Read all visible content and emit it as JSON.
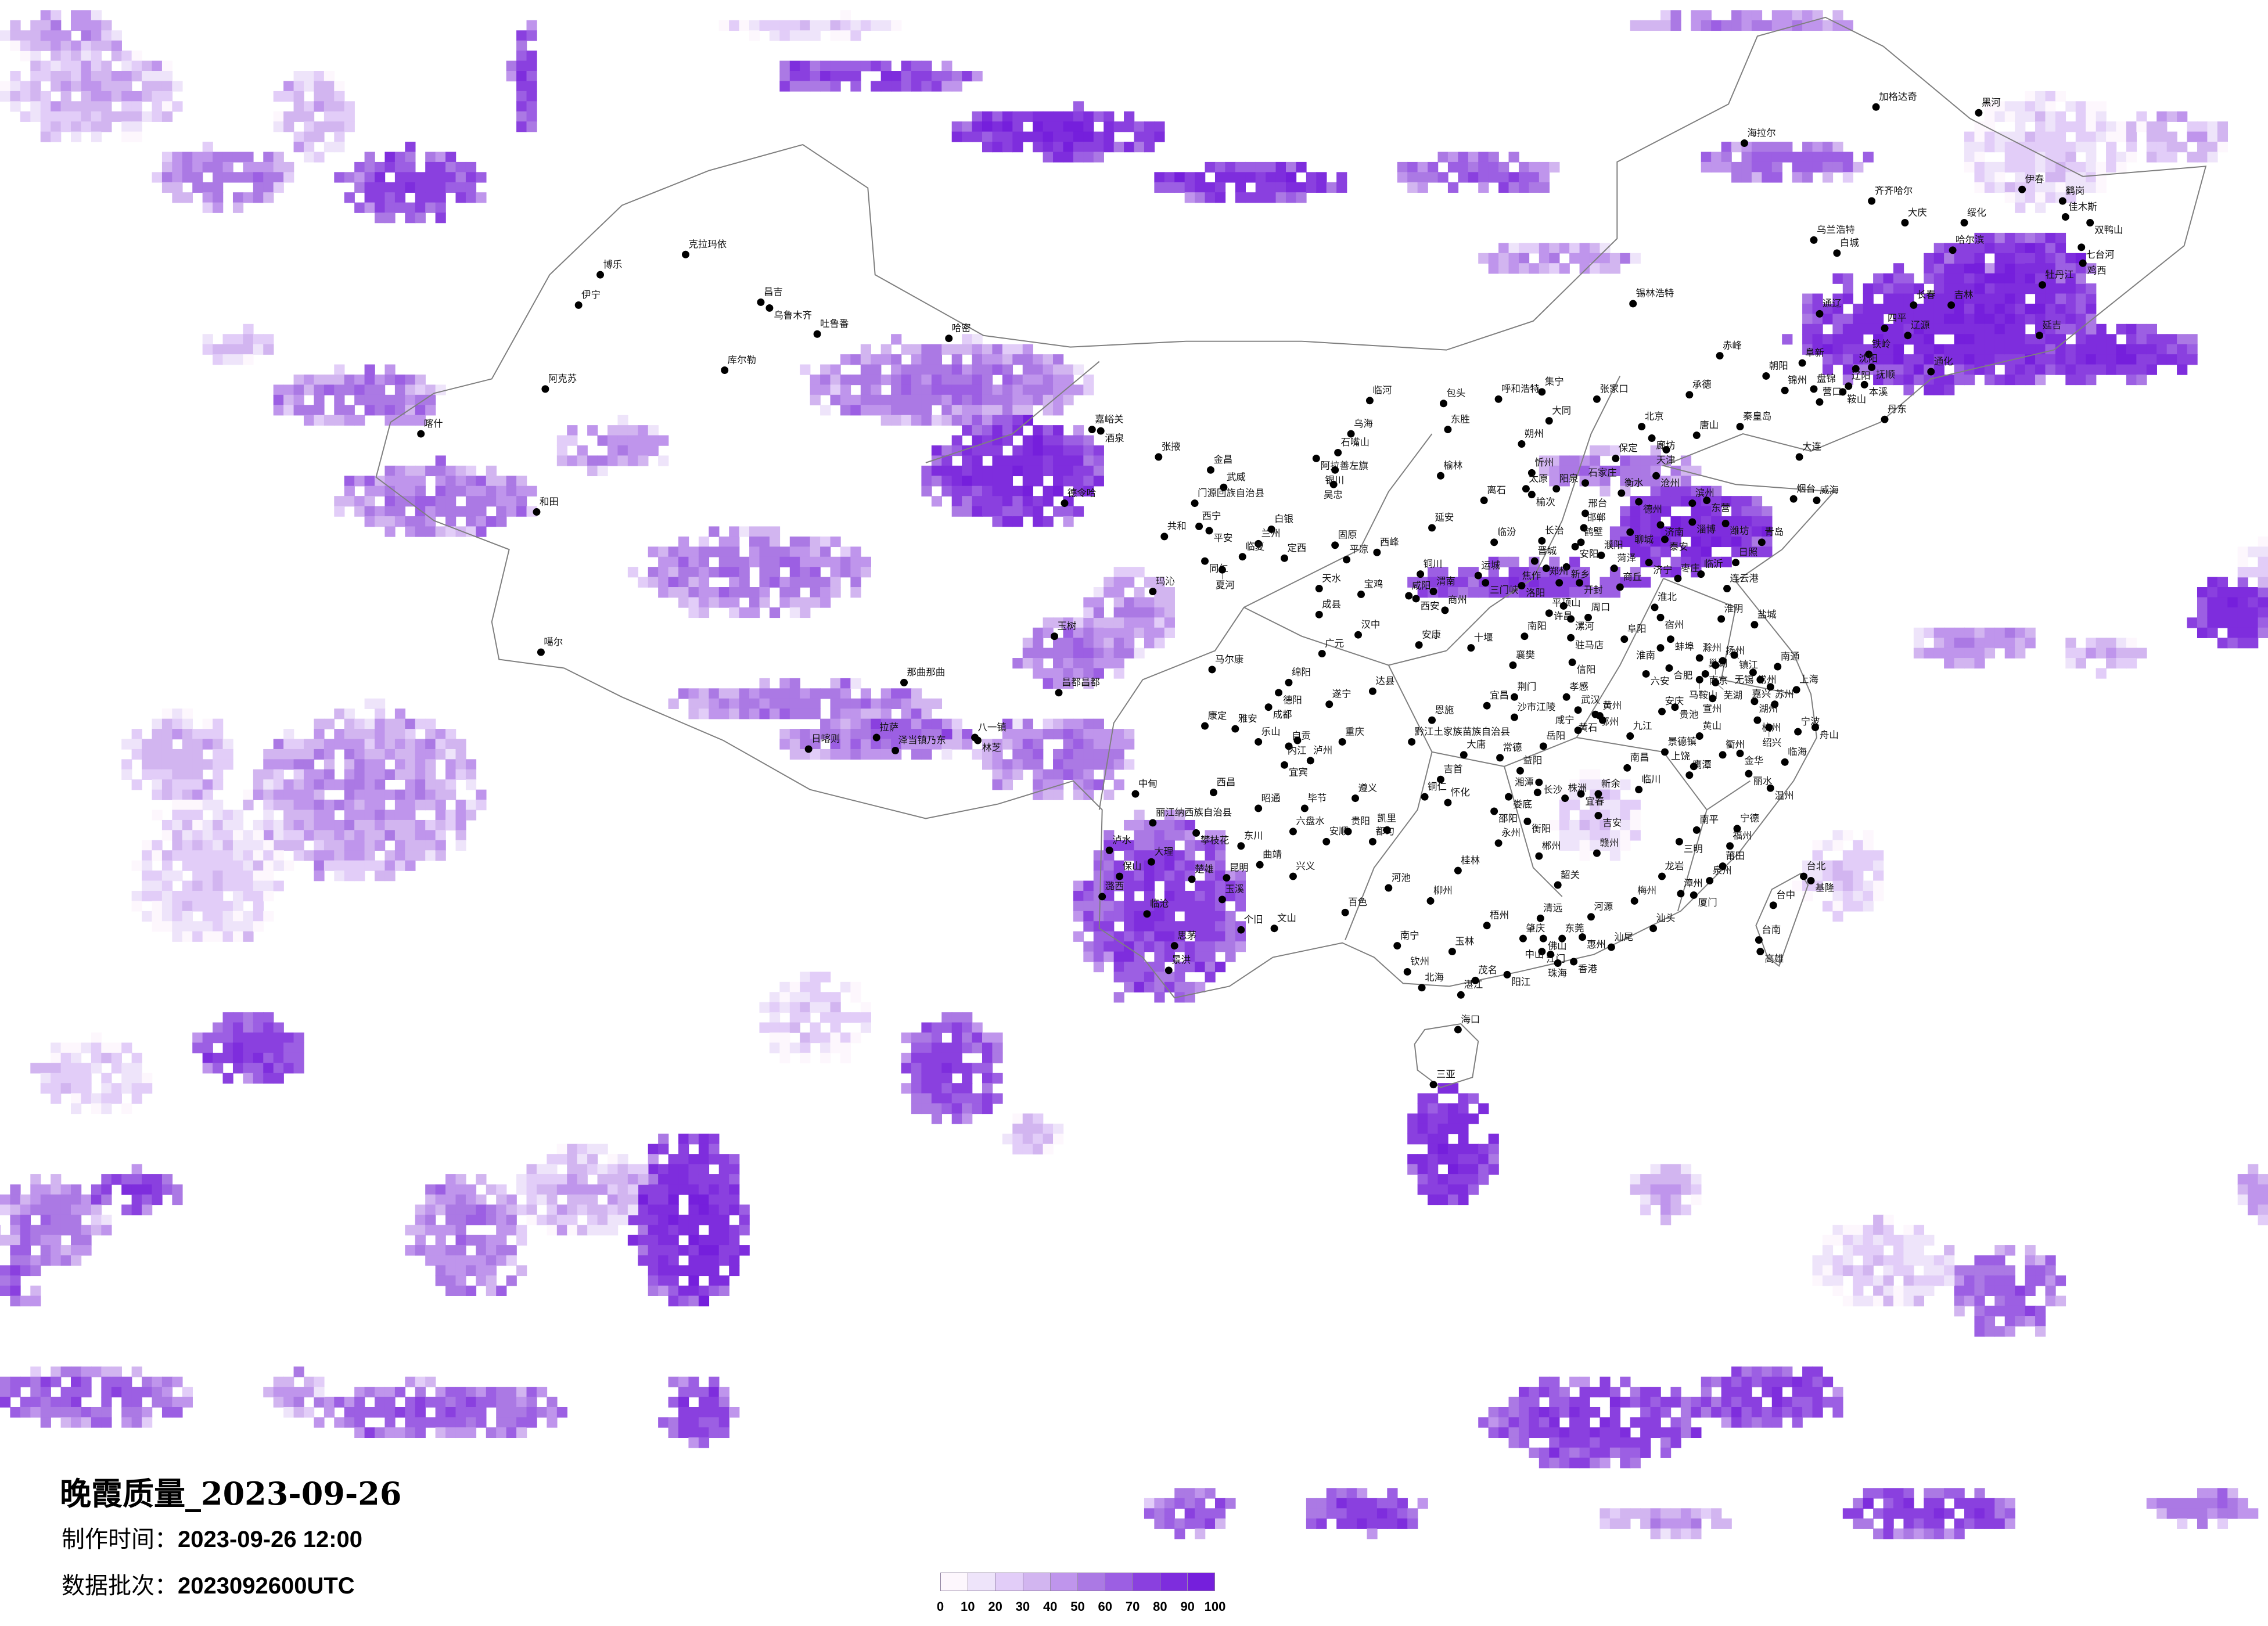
{
  "title": "晚霞质量_2023-09-26",
  "production_time": {
    "label": "制作时间：",
    "value": "2023-09-26 12:00"
  },
  "data_batch": {
    "label": "数据批次：",
    "value": "2023092600UTC"
  },
  "legend": {
    "colors": [
      "#fdf7fd",
      "#eee4fa",
      "#e2cdf8",
      "#d2b5f0",
      "#bf95ec",
      "#ab79e4",
      "#9c5fe3",
      "#8a40df",
      "#7e2ddd",
      "#751fdc"
    ],
    "ticks": [
      "0",
      "10",
      "20",
      "30",
      "40",
      "50",
      "60",
      "70",
      "80",
      "90",
      "100"
    ]
  },
  "boundary_color": "#7f7f7f",
  "cities": [
    "克拉玛依",
    "博乐",
    "伊宁",
    "昌吉",
    "乌鲁木齐",
    "吐鲁番",
    "哈密",
    "库尔勒",
    "阿克苏",
    "喀什",
    "和田",
    "噶尔",
    "嘉峪关",
    "酒泉",
    "德令哈",
    "玉树",
    "那曲那曲",
    "昌都昌都",
    "拉萨",
    "泽当镇乃东",
    "日喀则",
    "八一镇",
    "林芝",
    "加格达奇",
    "黑河",
    "海拉尔",
    "齐齐哈尔",
    "大庆",
    "绥化",
    "伊春",
    "鹤岗",
    "佳木斯",
    "双鸭山",
    "七台河",
    "鸡西",
    "乌兰浩特",
    "白城",
    "哈尔滨",
    "牡丹江",
    "长春",
    "吉林",
    "锡林浩特",
    "通辽",
    "四平",
    "辽源",
    "延吉",
    "铁岭",
    "赤峰",
    "阜新",
    "沈阳",
    "抚顺",
    "通化",
    "朝阳",
    "锦州",
    "盘锦",
    "辽阳",
    "鞍山",
    "本溪",
    "营口",
    "临河",
    "包头",
    "呼和浩特",
    "集宁",
    "张家口",
    "承德",
    "丹东",
    "大同",
    "北京",
    "秦皇岛",
    "乌海",
    "东胜",
    "唐山",
    "廊坊",
    "朔州",
    "天津",
    "石嘴山",
    "阿拉善左旗",
    "大连",
    "保定",
    "银川",
    "榆林",
    "忻州",
    "沧州",
    "吴忠",
    "石家庄",
    "太原",
    "榆次",
    "阳泉",
    "衡水",
    "烟台",
    "威海",
    "离石",
    "德州",
    "滨州",
    "东营",
    "邢台",
    "淄博",
    "潍坊",
    "济南",
    "邯郸",
    "延安",
    "聊城",
    "青岛",
    "泰安",
    "临汾",
    "长治",
    "鹤壁",
    "固原",
    "西峰",
    "平凉",
    "安阳",
    "濮阳",
    "晋城",
    "济宁",
    "日照",
    "新乡",
    "焦作",
    "菏泽",
    "铜川",
    "运城",
    "临沂",
    "枣庄",
    "张掖",
    "金昌",
    "武威",
    "门源回族自治县",
    "西宁",
    "平安",
    "共和",
    "白银",
    "兰州",
    "同仁",
    "临夏",
    "夏河",
    "定西",
    "玛沁",
    "天水",
    "宝鸡",
    "咸阳",
    "西安",
    "渭南",
    "成县",
    "商州",
    "汉中",
    "安康",
    "十堰",
    "广元",
    "马尔康",
    "绵阳",
    "德阳",
    "达县",
    "成都",
    "遂宁",
    "康定",
    "雅安",
    "乐山",
    "自贡",
    "内江",
    "重庆",
    "宜宾",
    "泸州",
    "黔江土家族苗族自治县",
    "恩施",
    "吉首",
    "铜仁",
    "怀化",
    "大庸",
    "常德",
    "益阳",
    "长沙",
    "湘潭",
    "株洲",
    "娄底",
    "邵阳",
    "衡阳",
    "岳阳",
    "荆门",
    "宜昌",
    "沙市江陵",
    "襄樊",
    "南阳",
    "平顶山",
    "许昌",
    "漯河",
    "周口",
    "驻马店",
    "信阳",
    "孝感",
    "武汉",
    "鄂州",
    "黄州",
    "黄石",
    "咸宁",
    "九江",
    "南昌",
    "宜春",
    "新余",
    "吉安",
    "临川",
    "景德镇",
    "鹰潭",
    "上饶",
    "黄山",
    "洛阳",
    "三门峡",
    "郑州",
    "开封",
    "商丘",
    "淮北",
    "宿州",
    "阜阳",
    "蚌埠",
    "淮南",
    "淮阴",
    "盐城",
    "连云港",
    "滁州",
    "六安",
    "合肥",
    "巢湖",
    "南京",
    "扬州",
    "镇江",
    "马鞍山",
    "芜湖",
    "常州",
    "无锡",
    "苏州",
    "上海",
    "南通",
    "宣州",
    "湖州",
    "嘉兴",
    "杭州",
    "绍兴",
    "宁波",
    "舟山",
    "安庆",
    "贵池",
    "衢州",
    "金华",
    "临海",
    "丽水",
    "温州",
    "中甸",
    "西昌",
    "丽江纳西族自治县",
    "攀枝花",
    "泸水",
    "东川",
    "大理",
    "曲靖",
    "保山",
    "楚雄",
    "昆明",
    "兴义",
    "潞西",
    "玉溪",
    "临沧",
    "个旧",
    "文山",
    "思茅",
    "景洪",
    "昭通",
    "毕节",
    "遵义",
    "六盘水",
    "安顺",
    "贵阳",
    "都匀",
    "凯里",
    "河池",
    "百色",
    "柳州",
    "桂林",
    "永州",
    "郴州",
    "赣州",
    "韶关",
    "南宁",
    "玉林",
    "梧州",
    "清远",
    "河源",
    "肇庆",
    "佛山",
    "东莞",
    "惠州",
    "江门",
    "中山",
    "香港",
    "珠海",
    "汕尾",
    "汕头",
    "梅州",
    "龙岩",
    "漳州",
    "厦门",
    "泉州",
    "莆田",
    "福州",
    "宁德",
    "南平",
    "三明",
    "钦州",
    "北海",
    "湛江",
    "茂名",
    "阳江",
    "海口",
    "三亚",
    "台北",
    "基隆",
    "台中",
    "台南",
    "高雄"
  ]
}
